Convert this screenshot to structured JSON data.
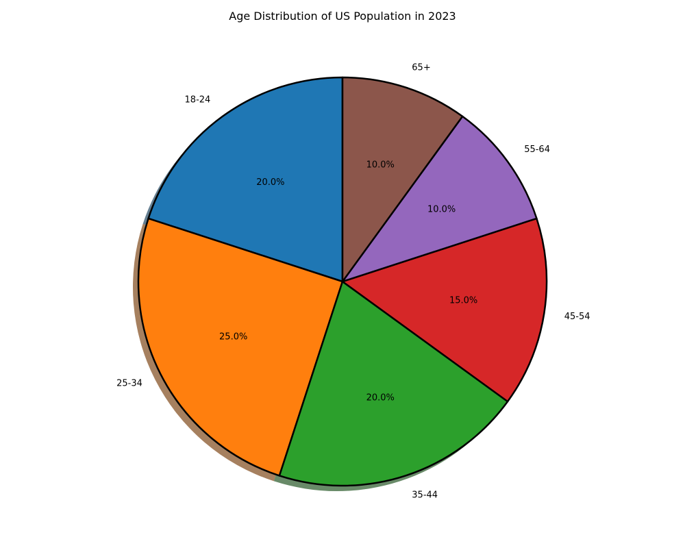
{
  "chart_data": {
    "type": "pie",
    "title": "Age Distribution of US Population in 2023",
    "categories": [
      "18-24",
      "25-34",
      "35-44",
      "45-54",
      "55-64",
      "65+"
    ],
    "values": [
      20,
      25,
      20,
      15,
      10,
      10
    ],
    "percent_labels": [
      "20.0%",
      "25.0%",
      "20.0%",
      "15.0%",
      "10.0%",
      "10.0%"
    ],
    "colors": [
      "#1f77b4",
      "#ff7f0e",
      "#2ca02c",
      "#d62728",
      "#9467bd",
      "#8c564b"
    ],
    "edge_color": "#000000",
    "shadow": true,
    "start_angle_deg": 90,
    "direction": "counterclockwise",
    "legend": "none"
  }
}
